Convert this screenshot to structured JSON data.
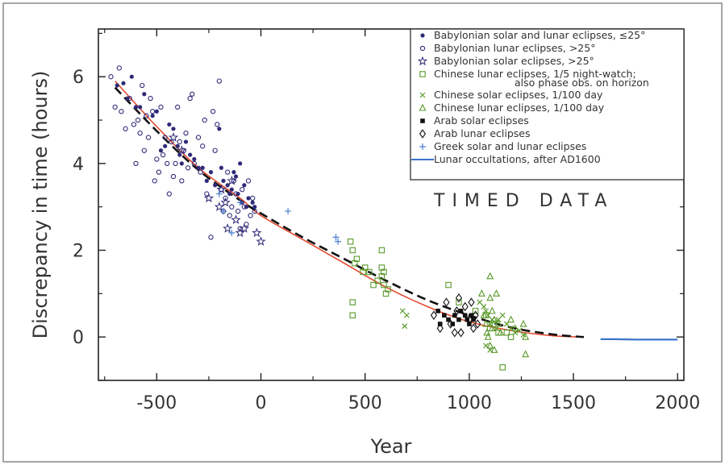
{
  "chart_data": {
    "type": "scatter",
    "title": "",
    "xlabel": "Year",
    "ylabel": "Discrepancy in time (hours)",
    "xlim": [
      -780,
      2030
    ],
    "ylim": [
      -1,
      7.1
    ],
    "xticks": [
      -500,
      0,
      500,
      1000,
      1500,
      2000
    ],
    "xtick_labels": [
      "-500",
      "0",
      "500",
      "1000",
      "1500",
      "2000"
    ],
    "yticks": [
      0,
      2,
      4,
      6
    ],
    "ytick_labels": [
      "0",
      "2",
      "4",
      "6"
    ],
    "grid": false,
    "legend_position": "top-right",
    "annotation": "TIMED DATA",
    "colors": {
      "babylonian": "#2e2a78",
      "chinese": "#5a9a2a",
      "arab": "#111111",
      "greek": "#4a7fd0",
      "occultation": "#3b74c8",
      "fit_red": "#e2442a",
      "fit_dashed": "#111111"
    },
    "series": [
      {
        "name": "Babylonian solar and lunar eclipses, ≤25°",
        "marker": "filled-circle",
        "color": "#2e2a78",
        "points": [
          [
            -690,
            5.8
          ],
          [
            -660,
            5.85
          ],
          [
            -640,
            5.5
          ],
          [
            -620,
            6.0
          ],
          [
            -600,
            5.3
          ],
          [
            -580,
            5.3
          ],
          [
            -560,
            5.6
          ],
          [
            -520,
            5.1
          ],
          [
            -500,
            5.2
          ],
          [
            -480,
            4.3
          ],
          [
            -460,
            4.4
          ],
          [
            -440,
            4.9
          ],
          [
            -420,
            4.8
          ],
          [
            -400,
            4.4
          ],
          [
            -390,
            4.2
          ],
          [
            -380,
            4.0
          ],
          [
            -360,
            4.5
          ],
          [
            -340,
            4.2
          ],
          [
            -320,
            4.1
          ],
          [
            -300,
            3.9
          ],
          [
            -280,
            3.9
          ],
          [
            -260,
            3.6
          ],
          [
            -240,
            3.8
          ],
          [
            -220,
            3.5
          ],
          [
            -200,
            4.8
          ],
          [
            -190,
            3.9
          ],
          [
            -180,
            3.6
          ],
          [
            -160,
            3.5
          ],
          [
            -150,
            3.3
          ],
          [
            -140,
            3.4
          ],
          [
            -130,
            3.8
          ],
          [
            -120,
            3.7
          ],
          [
            -110,
            3.3
          ],
          [
            -100,
            4.0
          ],
          [
            -90,
            3.1
          ],
          [
            -80,
            3.5
          ],
          [
            -70,
            3.0
          ],
          [
            -60,
            3.2
          ],
          [
            -40,
            3.1
          ],
          [
            -30,
            3.0
          ]
        ]
      },
      {
        "name": "Babylonian lunar eclipses, >25°",
        "marker": "open-circle",
        "color": "#2e2a78",
        "points": [
          [
            -720,
            6.0
          ],
          [
            -700,
            5.3
          ],
          [
            -680,
            6.2
          ],
          [
            -670,
            5.2
          ],
          [
            -650,
            4.8
          ],
          [
            -630,
            5.5
          ],
          [
            -610,
            4.9
          ],
          [
            -600,
            4.0
          ],
          [
            -590,
            5.0
          ],
          [
            -580,
            4.7
          ],
          [
            -570,
            5.8
          ],
          [
            -560,
            4.3
          ],
          [
            -550,
            5.1
          ],
          [
            -540,
            4.6
          ],
          [
            -530,
            5.5
          ],
          [
            -520,
            5.2
          ],
          [
            -510,
            3.6
          ],
          [
            -500,
            4.1
          ],
          [
            -490,
            3.8
          ],
          [
            -480,
            5.3
          ],
          [
            -470,
            4.2
          ],
          [
            -460,
            4.6
          ],
          [
            -450,
            4.0
          ],
          [
            -440,
            3.3
          ],
          [
            -430,
            4.5
          ],
          [
            -420,
            3.7
          ],
          [
            -410,
            4.0
          ],
          [
            -400,
            5.3
          ],
          [
            -390,
            4.5
          ],
          [
            -380,
            3.6
          ],
          [
            -370,
            4.3
          ],
          [
            -360,
            4.7
          ],
          [
            -350,
            3.9
          ],
          [
            -340,
            5.5
          ],
          [
            -330,
            5.6
          ],
          [
            -320,
            4.0
          ],
          [
            -300,
            4.6
          ],
          [
            -290,
            3.8
          ],
          [
            -280,
            4.4
          ],
          [
            -270,
            5.0
          ],
          [
            -260,
            3.3
          ],
          [
            -240,
            2.3
          ],
          [
            -230,
            5.2
          ],
          [
            -220,
            4.3
          ],
          [
            -210,
            4.9
          ],
          [
            -200,
            5.9
          ],
          [
            -190,
            3.4
          ],
          [
            -180,
            2.9
          ],
          [
            -170,
            3.2
          ],
          [
            -160,
            3.8
          ],
          [
            -150,
            2.8
          ],
          [
            -140,
            3.0
          ],
          [
            -130,
            3.6
          ],
          [
            -120,
            3.3
          ],
          [
            -110,
            2.9
          ],
          [
            -100,
            2.5
          ],
          [
            -90,
            3.4
          ],
          [
            -80,
            3.0
          ],
          [
            -70,
            2.6
          ],
          [
            -60,
            3.6
          ],
          [
            -50,
            2.8
          ],
          [
            -40,
            3.2
          ],
          [
            -30,
            2.9
          ]
        ]
      },
      {
        "name": "Babylonian solar eclipses, >25°",
        "marker": "star",
        "color": "#2e2a78",
        "points": [
          [
            -420,
            4.6
          ],
          [
            -380,
            4.3
          ],
          [
            -250,
            3.2
          ],
          [
            -190,
            3.4
          ],
          [
            -170,
            3.1
          ],
          [
            -160,
            2.5
          ],
          [
            -140,
            3.6
          ],
          [
            -120,
            2.7
          ],
          [
            -100,
            2.4
          ],
          [
            -80,
            2.5
          ],
          [
            -20,
            2.4
          ],
          [
            0,
            2.2
          ],
          [
            -200,
            3.0
          ]
        ]
      },
      {
        "name": "Chinese lunar eclipses, 1/5 night-watch;",
        "name_line2": "also phase obs. on horizon",
        "marker": "open-square",
        "color": "#5a9a2a",
        "points": [
          [
            430,
            2.2
          ],
          [
            440,
            2.0
          ],
          [
            440,
            0.8
          ],
          [
            450,
            1.7
          ],
          [
            460,
            1.8
          ],
          [
            440,
            0.5
          ],
          [
            490,
            1.5
          ],
          [
            500,
            1.6
          ],
          [
            520,
            1.5
          ],
          [
            540,
            1.2
          ],
          [
            560,
            1.3
          ],
          [
            580,
            1.6
          ],
          [
            590,
            1.5
          ],
          [
            580,
            2.0
          ],
          [
            590,
            1.2
          ],
          [
            600,
            1.0
          ],
          [
            610,
            1.1
          ],
          [
            580,
            1.4
          ],
          [
            900,
            1.2
          ],
          [
            950,
            0.8
          ],
          [
            1030,
            0.6
          ],
          [
            1080,
            0.5
          ],
          [
            1100,
            0.2
          ],
          [
            1140,
            0.1
          ],
          [
            1160,
            -0.7
          ],
          [
            1180,
            0.1
          ],
          [
            1200,
            0.0
          ]
        ]
      },
      {
        "name": "Chinese solar eclipses, 1/100 day",
        "marker": "x",
        "color": "#5a9a2a",
        "points": [
          [
            680,
            0.6
          ],
          [
            700,
            0.5
          ],
          [
            690,
            0.25
          ],
          [
            1050,
            0.8
          ],
          [
            1070,
            0.7
          ],
          [
            1080,
            0.6
          ],
          [
            1090,
            0.5
          ],
          [
            1100,
            0.3
          ],
          [
            1110,
            0.4
          ],
          [
            1120,
            0.35
          ],
          [
            1130,
            0.2
          ],
          [
            1140,
            0.4
          ],
          [
            1160,
            0.5
          ],
          [
            1180,
            0.3
          ],
          [
            1200,
            0.2
          ],
          [
            1220,
            0.1
          ],
          [
            1240,
            0.15
          ],
          [
            1260,
            0.05
          ],
          [
            1100,
            -0.3
          ],
          [
            1080,
            -0.2
          ]
        ]
      },
      {
        "name": "Chinese lunar eclipses, 1/100 day",
        "marker": "open-triangle",
        "color": "#5a9a2a",
        "points": [
          [
            1060,
            1.0
          ],
          [
            1070,
            0.5
          ],
          [
            1080,
            0.3
          ],
          [
            1085,
            0.1
          ],
          [
            1090,
            0.0
          ],
          [
            1100,
            1.4
          ],
          [
            1100,
            0.9
          ],
          [
            1100,
            -0.2
          ],
          [
            1110,
            0.6
          ],
          [
            1110,
            0.2
          ],
          [
            1120,
            0.4
          ],
          [
            1120,
            -0.3
          ],
          [
            1130,
            1.0
          ],
          [
            1140,
            0.3
          ],
          [
            1150,
            0.1
          ],
          [
            1200,
            0.4
          ],
          [
            1220,
            0.2
          ],
          [
            1260,
            0.3
          ],
          [
            1270,
            -0.4
          ],
          [
            1270,
            0.0
          ]
        ]
      },
      {
        "name": "Arab solar eclipses",
        "marker": "filled-square",
        "color": "#111111",
        "points": [
          [
            850,
            0.6
          ],
          [
            860,
            0.3
          ],
          [
            880,
            0.5
          ],
          [
            900,
            0.4
          ],
          [
            920,
            0.3
          ],
          [
            930,
            0.5
          ],
          [
            950,
            0.4
          ],
          [
            960,
            0.6
          ],
          [
            980,
            0.5
          ],
          [
            990,
            0.4
          ],
          [
            1000,
            0.3
          ],
          [
            1010,
            0.5
          ],
          [
            1020,
            0.4
          ]
        ]
      },
      {
        "name": "Arab lunar eclipses",
        "marker": "open-diamond",
        "color": "#111111",
        "points": [
          [
            830,
            0.5
          ],
          [
            860,
            0.2
          ],
          [
            890,
            0.8
          ],
          [
            910,
            0.3
          ],
          [
            940,
            0.6
          ],
          [
            950,
            0.9
          ],
          [
            960,
            0.1
          ],
          [
            980,
            0.7
          ],
          [
            1000,
            0.4
          ],
          [
            1010,
            0.8
          ],
          [
            1020,
            0.2
          ],
          [
            1030,
            0.5
          ],
          [
            930,
            0.1
          ],
          [
            1040,
            0.3
          ]
        ]
      },
      {
        "name": "Greek solar and lunar eclipses",
        "marker": "plus",
        "color": "#4a7fd0",
        "points": [
          [
            -200,
            3.3
          ],
          [
            -180,
            2.9
          ],
          [
            -140,
            2.4
          ],
          [
            -100,
            3.1
          ],
          [
            130,
            2.9
          ],
          [
            360,
            2.3
          ],
          [
            370,
            2.2
          ]
        ]
      },
      {
        "name": "Lunar occultations, after AD1600",
        "marker": "line",
        "color": "#3b74c8",
        "points": [
          [
            1630,
            -0.05
          ],
          [
            1700,
            -0.05
          ],
          [
            1800,
            -0.06
          ],
          [
            1900,
            -0.06
          ],
          [
            2000,
            -0.06
          ]
        ]
      }
    ],
    "fits": [
      {
        "style": "solid",
        "color": "#e2442a",
        "points": [
          [
            -700,
            5.9
          ],
          [
            -500,
            4.85
          ],
          [
            -300,
            3.9
          ],
          [
            -100,
            3.2
          ],
          [
            0,
            2.8
          ],
          [
            200,
            2.25
          ],
          [
            400,
            1.7
          ],
          [
            600,
            1.15
          ],
          [
            800,
            0.7
          ],
          [
            1000,
            0.35
          ],
          [
            1200,
            0.15
          ],
          [
            1400,
            0.03
          ],
          [
            1550,
            0.0
          ]
        ]
      },
      {
        "style": "dashed",
        "color": "#111111",
        "points": [
          [
            -700,
            5.75
          ],
          [
            -500,
            4.75
          ],
          [
            -300,
            3.85
          ],
          [
            -100,
            3.15
          ],
          [
            0,
            2.85
          ],
          [
            200,
            2.3
          ],
          [
            400,
            1.8
          ],
          [
            600,
            1.3
          ],
          [
            800,
            0.85
          ],
          [
            1000,
            0.5
          ],
          [
            1200,
            0.22
          ],
          [
            1400,
            0.06
          ],
          [
            1550,
            0.0
          ]
        ]
      }
    ]
  }
}
